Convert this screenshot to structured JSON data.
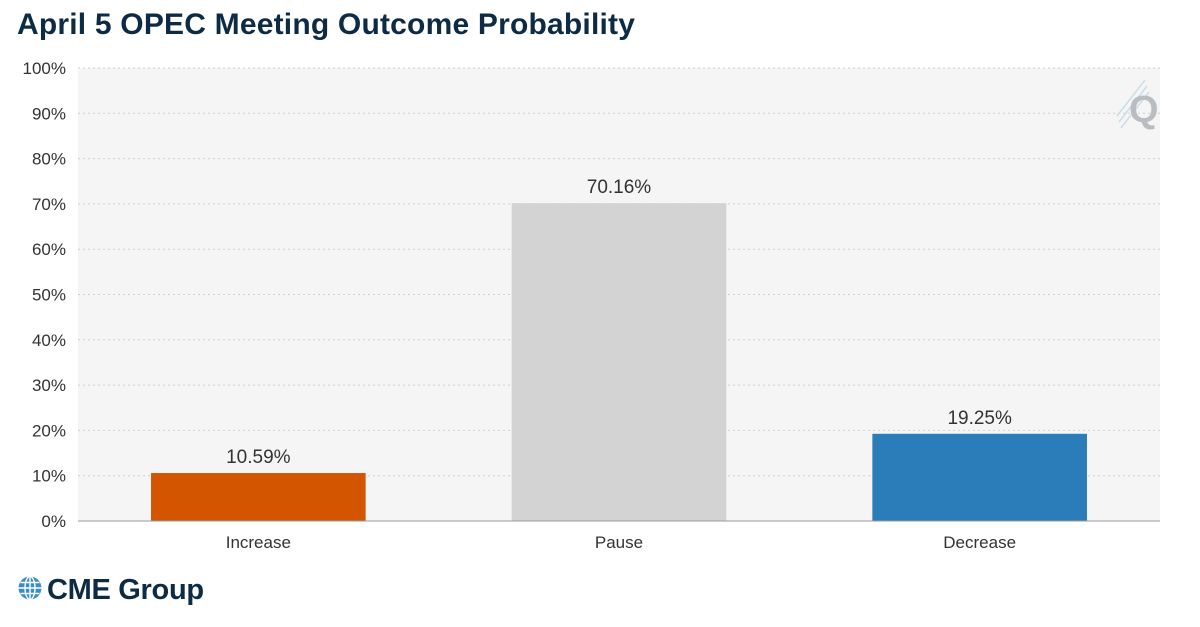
{
  "title": "April 5 OPEC Meeting Outcome Probability",
  "brand": {
    "name": "CME Group",
    "icon": "globe-icon",
    "color": "#0d2b45"
  },
  "watermark": {
    "letter": "Q",
    "icon": "q-watermark-icon"
  },
  "chart_data": {
    "type": "bar",
    "title": "April 5 OPEC Meeting Outcome Probability",
    "xlabel": "",
    "ylabel": "",
    "categories": [
      "Increase",
      "Pause",
      "Decrease"
    ],
    "values": [
      10.59,
      70.16,
      19.25
    ],
    "data_labels": [
      "10.59%",
      "70.16%",
      "19.25%"
    ],
    "colors": [
      "#d45500",
      "#d3d3d3",
      "#2a7db8"
    ],
    "ylim": [
      0,
      100
    ],
    "y_ticks": [
      0,
      10,
      20,
      30,
      40,
      50,
      60,
      70,
      80,
      90,
      100
    ],
    "y_tick_labels": [
      "0%",
      "10%",
      "20%",
      "30%",
      "40%",
      "50%",
      "60%",
      "70%",
      "80%",
      "90%",
      "100%"
    ],
    "grid": true,
    "legend": "none",
    "plot_background": "#f5f5f5"
  }
}
